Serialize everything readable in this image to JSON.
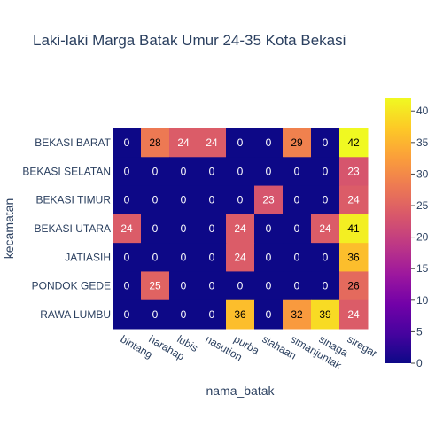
{
  "chart_data": {
    "type": "heatmap",
    "title": "Laki-laki Marga Batak Umur 24-35 Kota Bekasi",
    "xlabel": "nama_batak",
    "ylabel": "kecamatan",
    "x": [
      "bintang",
      "harahap",
      "lubis",
      "nasution",
      "purba",
      "siahaan",
      "simanjuntak",
      "sinaga",
      "siregar"
    ],
    "y": [
      "BEKASI BARAT",
      "BEKASI SELATAN",
      "BEKASI TIMUR",
      "BEKASI UTARA",
      "JATIASIH",
      "PONDOK GEDE",
      "RAWA LUMBU"
    ],
    "z": [
      [
        0,
        28,
        24,
        24,
        0,
        0,
        29,
        0,
        42
      ],
      [
        0,
        0,
        0,
        0,
        0,
        0,
        0,
        0,
        23
      ],
      [
        0,
        0,
        0,
        0,
        0,
        23,
        0,
        0,
        24
      ],
      [
        24,
        0,
        0,
        0,
        24,
        0,
        0,
        24,
        41
      ],
      [
        0,
        0,
        0,
        0,
        24,
        0,
        0,
        0,
        36
      ],
      [
        0,
        25,
        0,
        0,
        0,
        0,
        0,
        0,
        26
      ],
      [
        0,
        0,
        0,
        0,
        36,
        0,
        32,
        39,
        24
      ]
    ],
    "zmin": 0,
    "zmax": 42,
    "colorbar_ticks": [
      0,
      5,
      10,
      15,
      20,
      25,
      30,
      35,
      40
    ],
    "colorscale": [
      "#0d0887",
      "#46039f",
      "#7201a8",
      "#9c179e",
      "#bd3786",
      "#d8576b",
      "#ed7953",
      "#fb9f3a",
      "#fdca26",
      "#f0f921"
    ]
  }
}
